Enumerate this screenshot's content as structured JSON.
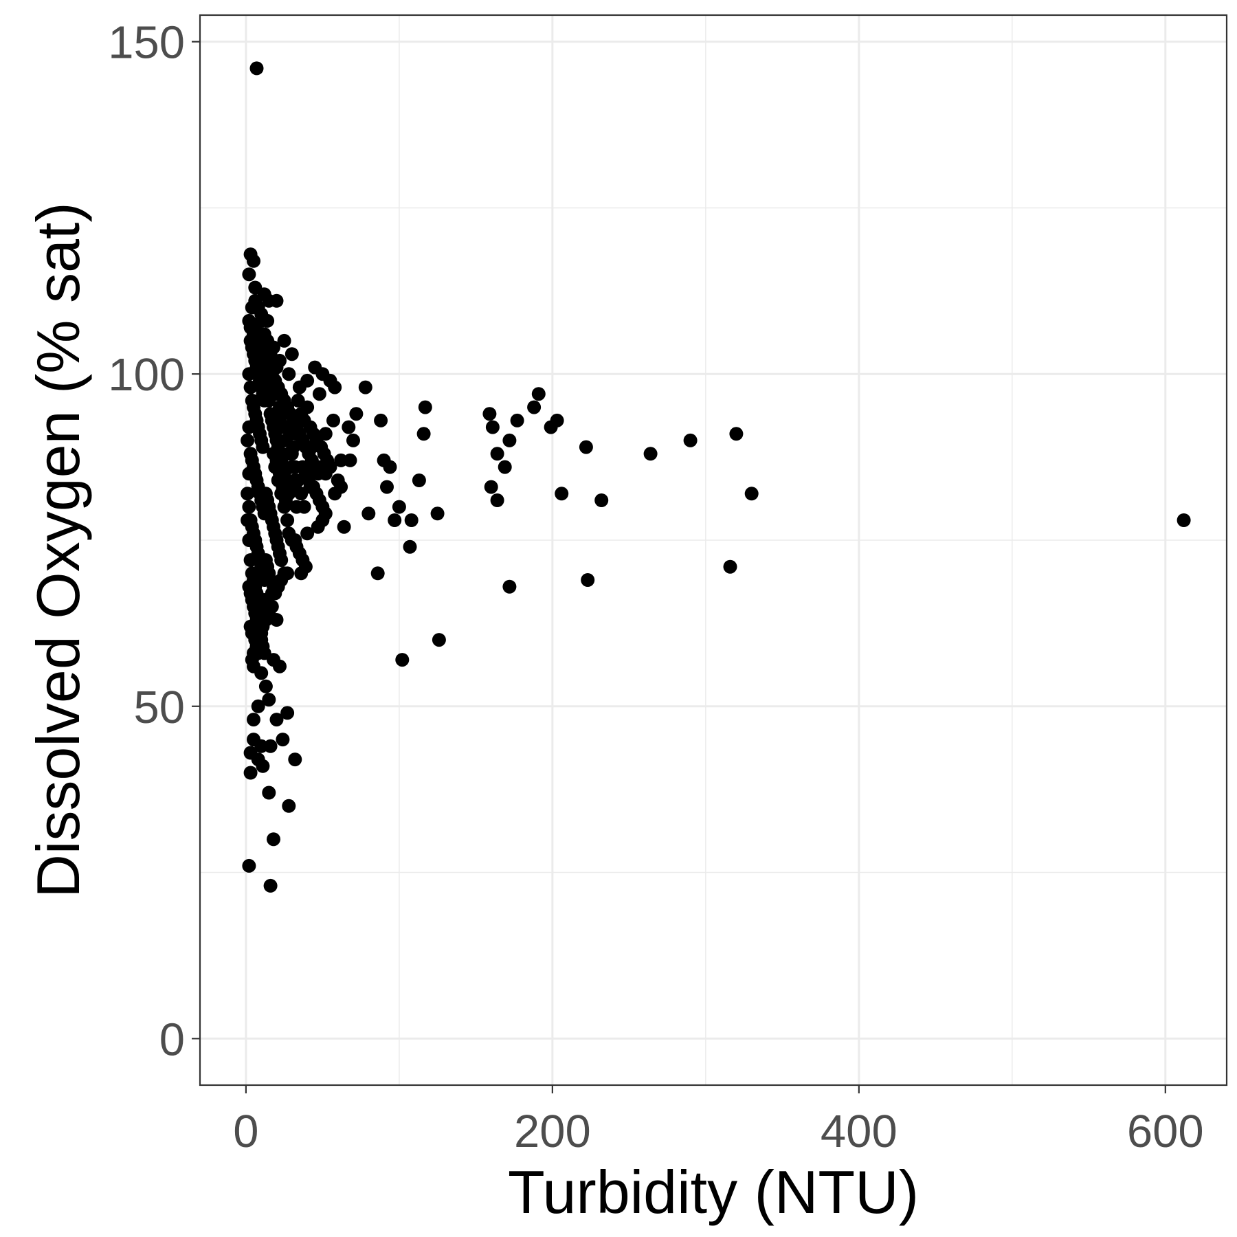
{
  "chart_data": {
    "type": "scatter",
    "title": "",
    "xlabel": "Turbidity (NTU)",
    "ylabel": "Dissolved Oxygen (% sat)",
    "xlim": [
      -30,
      640
    ],
    "ylim": [
      -7,
      154
    ],
    "x_ticks": [
      0,
      200,
      400,
      600
    ],
    "y_ticks": [
      0,
      50,
      100,
      150
    ],
    "x_minor": [
      100,
      300,
      500
    ],
    "y_minor": [
      25,
      75,
      125
    ],
    "x_tick_labels": [
      "0",
      "200",
      "400",
      "600"
    ],
    "y_tick_labels": [
      "0",
      "50",
      "100",
      "150"
    ],
    "grid": true,
    "legend": "none",
    "point_color": "#000000",
    "series": [
      {
        "points": [
          [
            7,
            146
          ],
          [
            3,
            118
          ],
          [
            5,
            117
          ],
          [
            2,
            115
          ],
          [
            6,
            113
          ],
          [
            12,
            112
          ],
          [
            15,
            111
          ],
          [
            20,
            111
          ],
          [
            4,
            110
          ],
          [
            10,
            109
          ],
          [
            14,
            108
          ],
          [
            6,
            107
          ],
          [
            25,
            105
          ],
          [
            18,
            104
          ],
          [
            30,
            103
          ],
          [
            22,
            102
          ],
          [
            45,
            101
          ],
          [
            28,
            100
          ],
          [
            50,
            100
          ],
          [
            40,
            99
          ],
          [
            55,
            99
          ],
          [
            35,
            98
          ],
          [
            58,
            98
          ],
          [
            78,
            98
          ],
          [
            48,
            97
          ],
          [
            40,
            95
          ],
          [
            117,
            95
          ],
          [
            72,
            94
          ],
          [
            57,
            93
          ],
          [
            67,
            92
          ],
          [
            88,
            93
          ],
          [
            33,
            91
          ],
          [
            116,
            91
          ],
          [
            52,
            91
          ],
          [
            70,
            90
          ],
          [
            62,
            87
          ],
          [
            68,
            87
          ],
          [
            90,
            87
          ],
          [
            94,
            86
          ],
          [
            43,
            89
          ],
          [
            47,
            86
          ],
          [
            52,
            85
          ],
          [
            60,
            84
          ],
          [
            62,
            83
          ],
          [
            113,
            84
          ],
          [
            42,
            83
          ],
          [
            32,
            83
          ],
          [
            58,
            82
          ],
          [
            28,
            82
          ],
          [
            92,
            83
          ],
          [
            100,
            80
          ],
          [
            33,
            80
          ],
          [
            80,
            79
          ],
          [
            125,
            79
          ],
          [
            97,
            78
          ],
          [
            108,
            78
          ],
          [
            50,
            78
          ],
          [
            47,
            77
          ],
          [
            64,
            77
          ],
          [
            40,
            76
          ],
          [
            32,
            75
          ],
          [
            107,
            74
          ],
          [
            23,
            72
          ],
          [
            27,
            70
          ],
          [
            36,
            70
          ],
          [
            86,
            70
          ],
          [
            18,
            68
          ],
          [
            14,
            66
          ],
          [
            20,
            63
          ],
          [
            10,
            61
          ],
          [
            5,
            61
          ],
          [
            102,
            57
          ],
          [
            126,
            60
          ],
          [
            18,
            57
          ],
          [
            5,
            56
          ],
          [
            10,
            55
          ],
          [
            22,
            56
          ],
          [
            13,
            53
          ],
          [
            15,
            51
          ],
          [
            8,
            50
          ],
          [
            27,
            49
          ],
          [
            20,
            48
          ],
          [
            5,
            48
          ],
          [
            24,
            45
          ],
          [
            10,
            44
          ],
          [
            16,
            44
          ],
          [
            5,
            45
          ],
          [
            3,
            43
          ],
          [
            8,
            42
          ],
          [
            11,
            41
          ],
          [
            32,
            42
          ],
          [
            3,
            40
          ],
          [
            15,
            37
          ],
          [
            28,
            35
          ],
          [
            18,
            30
          ],
          [
            2,
            26
          ],
          [
            16,
            23
          ],
          [
            159,
            94
          ],
          [
            161,
            92
          ],
          [
            164,
            88
          ],
          [
            172,
            90
          ],
          [
            177,
            93
          ],
          [
            188,
            95
          ],
          [
            191,
            97
          ],
          [
            199,
            92
          ],
          [
            203,
            93
          ],
          [
            222,
            89
          ],
          [
            160,
            83
          ],
          [
            164,
            81
          ],
          [
            169,
            86
          ],
          [
            206,
            82
          ],
          [
            232,
            81
          ],
          [
            264,
            88
          ],
          [
            290,
            90
          ],
          [
            320,
            91
          ],
          [
            330,
            82
          ],
          [
            172,
            68
          ],
          [
            223,
            69
          ],
          [
            316,
            71
          ],
          [
            612,
            78
          ],
          [
            2,
            100
          ],
          [
            3,
            98
          ],
          [
            4,
            96
          ],
          [
            5,
            95
          ],
          [
            6,
            94
          ],
          [
            7,
            93
          ],
          [
            8,
            92
          ],
          [
            9,
            91
          ],
          [
            10,
            90
          ],
          [
            11,
            89
          ],
          [
            3,
            88
          ],
          [
            4,
            87
          ],
          [
            5,
            86
          ],
          [
            6,
            85
          ],
          [
            7,
            84
          ],
          [
            8,
            83
          ],
          [
            9,
            82
          ],
          [
            10,
            81
          ],
          [
            11,
            80
          ],
          [
            12,
            79
          ],
          [
            3,
            78
          ],
          [
            4,
            77
          ],
          [
            5,
            76
          ],
          [
            6,
            75
          ],
          [
            7,
            74
          ],
          [
            8,
            73
          ],
          [
            9,
            72
          ],
          [
            10,
            71
          ],
          [
            11,
            70
          ],
          [
            12,
            69
          ],
          [
            2,
            68
          ],
          [
            3,
            67
          ],
          [
            4,
            66
          ],
          [
            5,
            65
          ],
          [
            6,
            64
          ],
          [
            7,
            63
          ],
          [
            8,
            62
          ],
          [
            13,
            99
          ],
          [
            14,
            97
          ],
          [
            15,
            96
          ],
          [
            16,
            94
          ],
          [
            17,
            93
          ],
          [
            18,
            92
          ],
          [
            19,
            91
          ],
          [
            20,
            90
          ],
          [
            21,
            89
          ],
          [
            22,
            88
          ],
          [
            23,
            87
          ],
          [
            24,
            86
          ],
          [
            25,
            85
          ],
          [
            26,
            84
          ],
          [
            27,
            83
          ],
          [
            13,
            82
          ],
          [
            14,
            81
          ],
          [
            15,
            80
          ],
          [
            16,
            79
          ],
          [
            17,
            78
          ],
          [
            18,
            77
          ],
          [
            19,
            76
          ],
          [
            20,
            75
          ],
          [
            21,
            74
          ],
          [
            22,
            73
          ],
          [
            13,
            72
          ],
          [
            14,
            71
          ],
          [
            15,
            70
          ],
          [
            16,
            69
          ],
          [
            17,
            67
          ],
          [
            12,
            66
          ],
          [
            11,
            65
          ],
          [
            9,
            64
          ],
          [
            3,
            105
          ],
          [
            4,
            104
          ],
          [
            5,
            103
          ],
          [
            6,
            102
          ],
          [
            7,
            101
          ],
          [
            8,
            100
          ],
          [
            9,
            99
          ],
          [
            10,
            98
          ],
          [
            11,
            97
          ],
          [
            12,
            96
          ],
          [
            2,
            108
          ],
          [
            3,
            107
          ],
          [
            5,
            106
          ],
          [
            7,
            105
          ],
          [
            9,
            104
          ],
          [
            11,
            103
          ],
          [
            13,
            102
          ],
          [
            15,
            101
          ],
          [
            17,
            100
          ],
          [
            19,
            99
          ],
          [
            21,
            98
          ],
          [
            23,
            97
          ],
          [
            25,
            96
          ],
          [
            27,
            95
          ],
          [
            29,
            94
          ],
          [
            31,
            93
          ],
          [
            33,
            92
          ],
          [
            35,
            91
          ],
          [
            37,
            90
          ],
          [
            39,
            89
          ],
          [
            41,
            88
          ],
          [
            43,
            87
          ],
          [
            45,
            86
          ],
          [
            47,
            85
          ],
          [
            30,
            88
          ],
          [
            32,
            86
          ],
          [
            34,
            84
          ],
          [
            36,
            82
          ],
          [
            38,
            80
          ],
          [
            24,
            92
          ],
          [
            26,
            90
          ],
          [
            28,
            88
          ],
          [
            30,
            86
          ],
          [
            32,
            84
          ],
          [
            20,
            94
          ],
          [
            22,
            93
          ],
          [
            26,
            92
          ],
          [
            29,
            91
          ],
          [
            31,
            89
          ],
          [
            19,
            86
          ],
          [
            21,
            84
          ],
          [
            23,
            82
          ],
          [
            25,
            80
          ],
          [
            27,
            78
          ],
          [
            18,
            88
          ],
          [
            20,
            87
          ],
          [
            22,
            85
          ],
          [
            24,
            83
          ],
          [
            26,
            81
          ],
          [
            2,
            92
          ],
          [
            2,
            85
          ],
          [
            2,
            80
          ],
          [
            2,
            75
          ],
          [
            1,
            90
          ],
          [
            1,
            82
          ],
          [
            1,
            78
          ],
          [
            3,
            72
          ],
          [
            4,
            70
          ],
          [
            5,
            69
          ],
          [
            6,
            68
          ],
          [
            7,
            67
          ],
          [
            8,
            66
          ],
          [
            9,
            65
          ],
          [
            10,
            60
          ],
          [
            11,
            59
          ],
          [
            12,
            58
          ],
          [
            3,
            62
          ],
          [
            4,
            61
          ],
          [
            6,
            60
          ],
          [
            8,
            58
          ],
          [
            14,
            104
          ],
          [
            16,
            103
          ],
          [
            18,
            102
          ],
          [
            20,
            101
          ],
          [
            6,
            111
          ],
          [
            8,
            110
          ],
          [
            10,
            108
          ],
          [
            12,
            106
          ],
          [
            14,
            105
          ],
          [
            16,
            100
          ],
          [
            18,
            98
          ],
          [
            20,
            97
          ],
          [
            22,
            95
          ],
          [
            24,
            94
          ],
          [
            34,
            96
          ],
          [
            36,
            94
          ],
          [
            38,
            93
          ],
          [
            42,
            92
          ],
          [
            44,
            91
          ],
          [
            46,
            90
          ],
          [
            49,
            89
          ],
          [
            51,
            88
          ],
          [
            53,
            87
          ],
          [
            55,
            86
          ],
          [
            37,
            86
          ],
          [
            39,
            85
          ],
          [
            41,
            84
          ],
          [
            44,
            83
          ],
          [
            46,
            82
          ],
          [
            48,
            81
          ],
          [
            50,
            80
          ],
          [
            52,
            79
          ],
          [
            28,
            76
          ],
          [
            30,
            75
          ],
          [
            33,
            74
          ],
          [
            35,
            73
          ],
          [
            37,
            72
          ],
          [
            39,
            71
          ],
          [
            25,
            70
          ],
          [
            23,
            69
          ],
          [
            21,
            68
          ],
          [
            19,
            67
          ],
          [
            17,
            65
          ],
          [
            15,
            64
          ],
          [
            13,
            63
          ],
          [
            11,
            62
          ],
          [
            9,
            61
          ],
          [
            7,
            59
          ],
          [
            5,
            58
          ],
          [
            4,
            57
          ]
        ]
      }
    ]
  }
}
